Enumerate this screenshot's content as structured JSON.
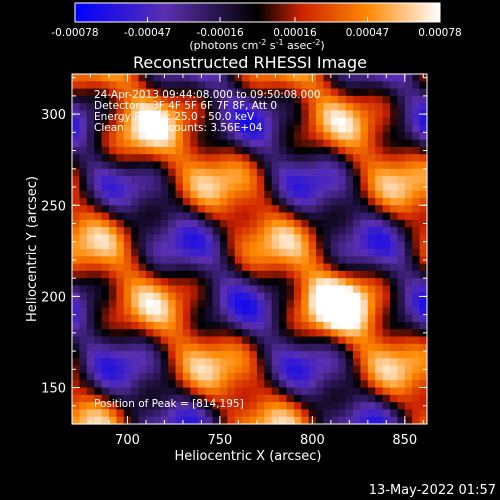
{
  "chart_data": {
    "type": "heatmap",
    "title": "Reconstructed RHESSI Image",
    "xlabel": "Heliocentric X (arcsec)",
    "ylabel": "Heliocentric Y (arcsec)",
    "xlim": [
      670,
      862
    ],
    "ylim": [
      130,
      322
    ],
    "x_ticks": [
      700,
      750,
      800,
      850
    ],
    "y_ticks": [
      150,
      200,
      250,
      300
    ],
    "colorbar": {
      "ticks": [
        "-0.00078",
        "-0.00047",
        "-0.00016",
        "0.00016",
        "0.00047",
        "0.00078"
      ],
      "range": [
        -0.00078,
        0.00078
      ],
      "units_prefix": "(photons cm",
      "units_sup1": "-2",
      "units_mid1": " s",
      "units_sup2": "-1",
      "units_mid2": " asec",
      "units_sup3": "-2",
      "units_suffix": ")"
    },
    "annotations": [
      "24-Apr-2013 09:44:08.000 to 09:50:08.000",
      "Detectors: 3F 4F 5F 6F 7F 8F, Att 0",
      "Energy Range: 25.0 - 50.0 keV",
      "Clean     Total counts: 3.56E+04"
    ],
    "peak_label": "Position of Peak = [814,195]",
    "peak": [
      814,
      195
    ],
    "colormap": [
      "#0000ff",
      "#5a2fb0",
      "#000000",
      "#cc2200",
      "#ff8800",
      "#ffffff"
    ]
  },
  "footer": {
    "date": "13-May-2022 01:57"
  }
}
